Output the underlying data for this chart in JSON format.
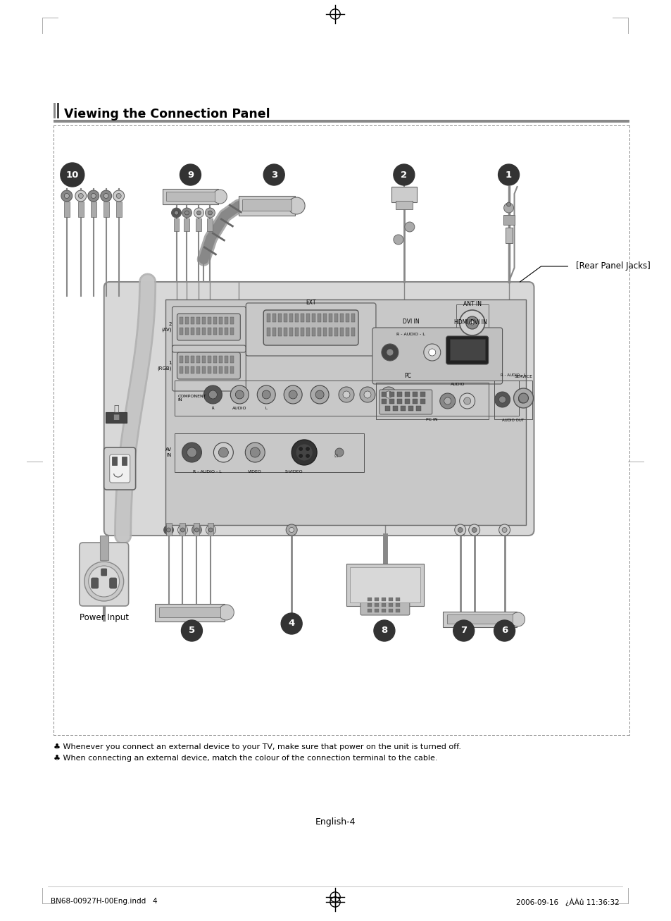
{
  "title": "Viewing the Connection Panel",
  "page_number": "English-4",
  "footer_left": "BN68-00927H-00Eng.indd   4",
  "footer_right": "2006-09-16   ¿ÀÀû 11:36:32",
  "note1": "♣ Whenever you connect an external device to your TV, make sure that power on the unit is turned off.",
  "note2": "♣ When connecting an external device, match the colour of the connection terminal to the cable.",
  "rear_panel_label": "[Rear Panel Jacks]",
  "power_input_label": "Power Input",
  "bg_color": "#ffffff",
  "panel_bg": "#e0e0e0",
  "dark_gray": "#555555",
  "mid_gray": "#999999",
  "light_gray": "#cccccc",
  "black": "#000000",
  "white": "#ffffff"
}
